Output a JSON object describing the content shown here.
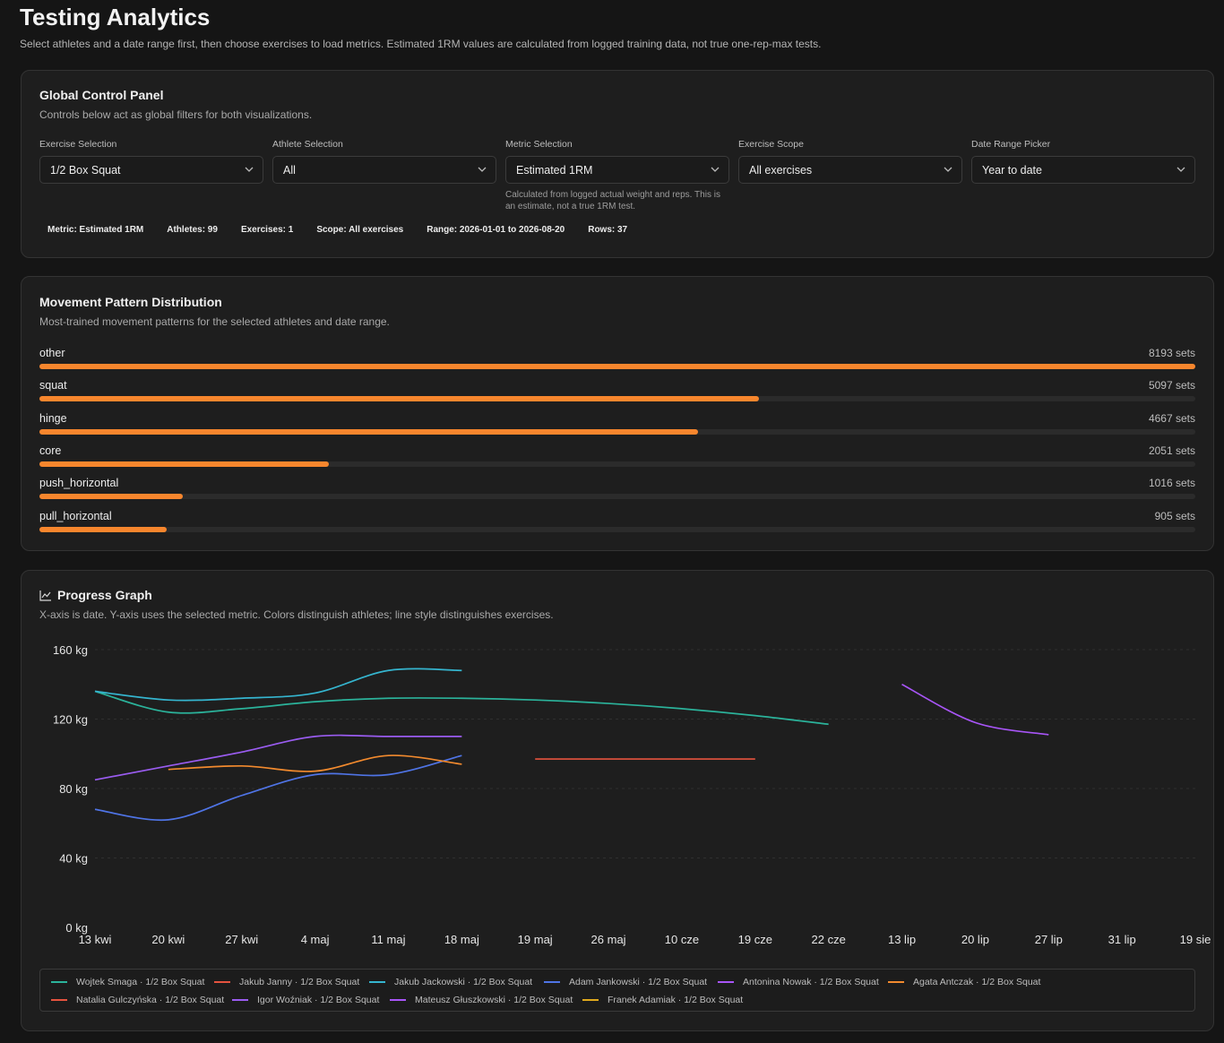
{
  "page": {
    "title": "Testing Analytics",
    "subtitle": "Select athletes and a date range first, then choose exercises to load metrics. Estimated 1RM values are calculated from logged training data, not true one-rep-max tests."
  },
  "controls": {
    "title": "Global Control Panel",
    "description": "Controls below act as global filters for both visualizations.",
    "exercise": {
      "label": "Exercise Selection",
      "value": "1/2 Box Squat"
    },
    "athlete": {
      "label": "Athlete Selection",
      "value": "All"
    },
    "metric": {
      "label": "Metric Selection",
      "value": "Estimated 1RM",
      "note": "Calculated from logged actual weight and reps. This is an estimate, not a true 1RM test."
    },
    "scope": {
      "label": "Exercise Scope",
      "value": "All exercises"
    },
    "range": {
      "label": "Date Range Picker",
      "value": "Year to date"
    },
    "stats": [
      "Metric: Estimated 1RM",
      "Athletes: 99",
      "Exercises: 1",
      "Scope: All exercises",
      "Range: 2026-01-01 to 2026-08-20",
      "Rows: 37"
    ]
  },
  "patterns": {
    "title": "Movement Pattern Distribution",
    "description": "Most-trained movement patterns for the selected athletes and date range.",
    "max": 8193,
    "items": [
      {
        "name": "other",
        "sets": 8193,
        "label": "8193 sets"
      },
      {
        "name": "squat",
        "sets": 5097,
        "label": "5097 sets"
      },
      {
        "name": "hinge",
        "sets": 4667,
        "label": "4667 sets"
      },
      {
        "name": "core",
        "sets": 2051,
        "label": "2051 sets"
      },
      {
        "name": "push_horizontal",
        "sets": 1016,
        "label": "1016 sets"
      },
      {
        "name": "pull_horizontal",
        "sets": 905,
        "label": "905 sets"
      }
    ],
    "bar_color": "#f7862d"
  },
  "progress": {
    "title": "Progress Graph",
    "description": "X-axis is date. Y-axis uses the selected metric. Colors distinguish athletes; line style distinguishes exercises."
  },
  "chart_data": {
    "type": "line",
    "x_categories": [
      "13 kwi",
      "20 kwi",
      "27 kwi",
      "4 maj",
      "11 maj",
      "18 maj",
      "19 maj",
      "26 maj",
      "10 cze",
      "19 cze",
      "22 cze",
      "13 lip",
      "20 lip",
      "27 lip",
      "31 lip",
      "19 sie"
    ],
    "y_ticks": [
      "0 kg",
      "40 kg",
      "80 kg",
      "120 kg",
      "160 kg"
    ],
    "y_tick_values": [
      0,
      40,
      80,
      120,
      160
    ],
    "ylim": [
      0,
      160
    ],
    "grid": true,
    "legend_position": "bottom",
    "series": [
      {
        "name": "Wojtek Smaga · 1/2 Box Squat",
        "color": "#2bb39b",
        "points": [
          [
            0,
            136
          ],
          [
            1,
            124
          ],
          [
            2,
            126
          ],
          [
            3,
            130
          ],
          [
            4,
            132
          ],
          [
            5,
            132
          ],
          [
            6,
            131
          ],
          [
            7,
            129
          ],
          [
            8,
            126
          ],
          [
            9,
            122
          ],
          [
            10,
            117
          ]
        ]
      },
      {
        "name": "Jakub Janny · 1/2 Box Squat",
        "color": "#e5533f",
        "points": []
      },
      {
        "name": "Jakub Jackowski · 1/2 Box Squat",
        "color": "#35b5cf",
        "points": [
          [
            0,
            136
          ],
          [
            1,
            131
          ],
          [
            2,
            132
          ],
          [
            3,
            135
          ],
          [
            4,
            148
          ],
          [
            5,
            148
          ]
        ]
      },
      {
        "name": "Adam Jankowski · 1/2 Box Squat",
        "color": "#4f74e6",
        "points": [
          [
            0,
            68
          ],
          [
            1,
            62
          ],
          [
            2,
            76
          ],
          [
            3,
            88
          ],
          [
            4,
            88
          ],
          [
            5,
            99
          ]
        ]
      },
      {
        "name": "Antonina Nowak · 1/2 Box Squat",
        "color": "#a855f7",
        "points": [
          [
            11,
            140
          ],
          [
            12,
            118
          ],
          [
            13,
            111
          ]
        ]
      },
      {
        "name": "Agata Antczak · 1/2 Box Squat",
        "color": "#f28a2e",
        "points": [
          [
            1,
            91
          ],
          [
            2,
            93
          ],
          [
            3,
            90
          ],
          [
            4,
            99
          ],
          [
            5,
            94
          ]
        ]
      },
      {
        "name": "Natalia Gulczyńska · 1/2 Box Squat",
        "color": "#e5533f",
        "points": [
          [
            6,
            97
          ],
          [
            7,
            97
          ],
          [
            8,
            97
          ],
          [
            9,
            97
          ]
        ]
      },
      {
        "name": "Igor Woźniak · 1/2 Box Squat",
        "color": "#9a5cf0",
        "points": [
          [
            0,
            85
          ],
          [
            1,
            93
          ],
          [
            2,
            101
          ],
          [
            3,
            110
          ],
          [
            4,
            110
          ],
          [
            5,
            110
          ]
        ]
      },
      {
        "name": "Mateusz Głuszkowski · 1/2 Box Squat",
        "color": "#a855f7",
        "points": []
      },
      {
        "name": "Franek Adamiak · 1/2 Box Squat",
        "color": "#e0a91d",
        "points": []
      }
    ]
  },
  "colors": {
    "background": "#151515",
    "card": "#1e1e1e",
    "accent": "#f7862d"
  }
}
